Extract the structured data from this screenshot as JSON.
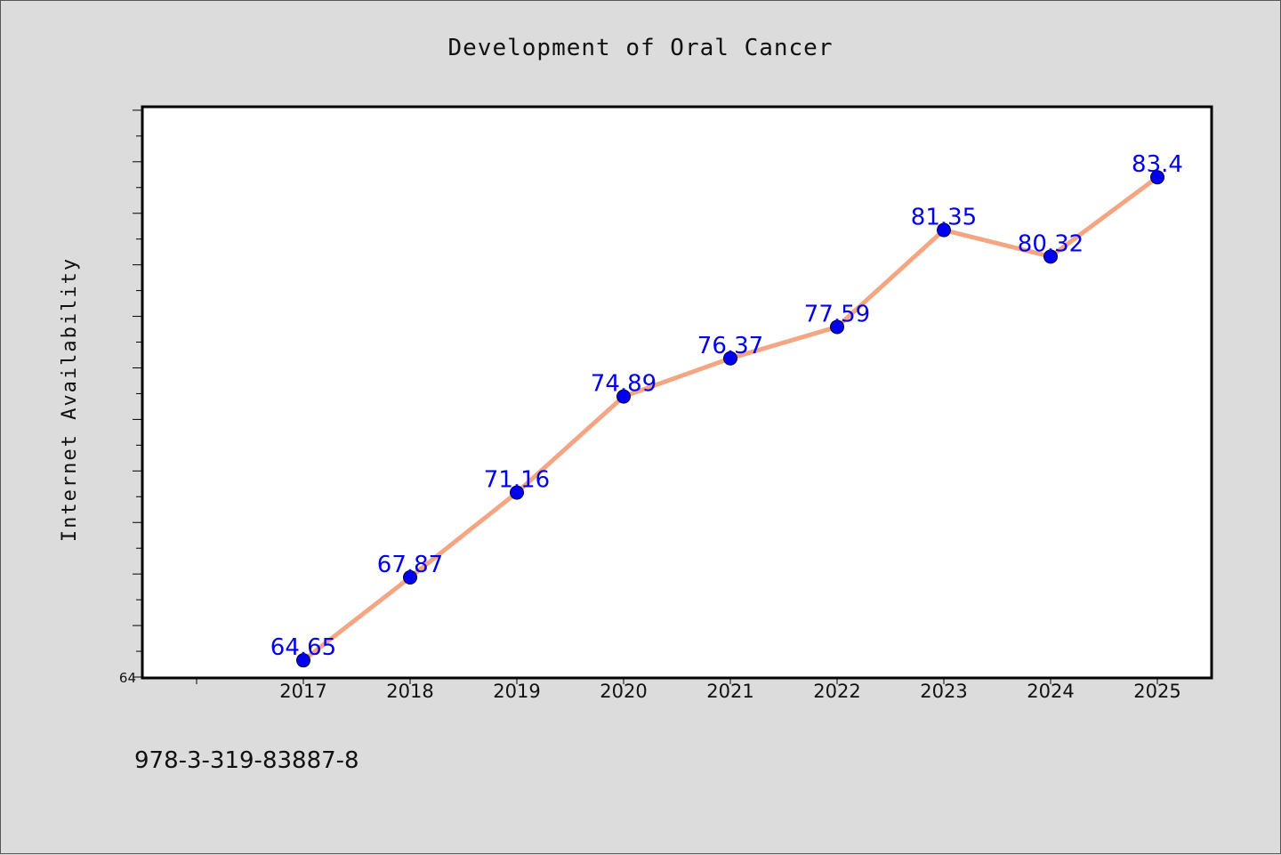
{
  "chart_data": {
    "type": "line",
    "title": "Development of Oral Cancer",
    "xlabel": "",
    "ylabel": "Internet Availability",
    "x": [
      "2017",
      "2018",
      "2019",
      "2020",
      "2021",
      "2022",
      "2023",
      "2024",
      "2025"
    ],
    "series": [
      {
        "values": [
          64.65,
          67.87,
          71.16,
          74.89,
          76.37,
          77.59,
          81.35,
          80.32,
          83.4
        ],
        "labels": [
          "64.65",
          "67.87",
          "71.16",
          "74.89",
          "76.37",
          "77.59",
          "81.35",
          "80.32",
          "83.4"
        ]
      }
    ],
    "ylim": [
      64,
      86.1
    ],
    "ytick_labels": [
      "64"
    ],
    "grid": false,
    "colors": {
      "line": "#f4a582",
      "marker": "#0000ee",
      "label": "#0000ee"
    }
  },
  "footnote": "978-3-319-83887-8"
}
